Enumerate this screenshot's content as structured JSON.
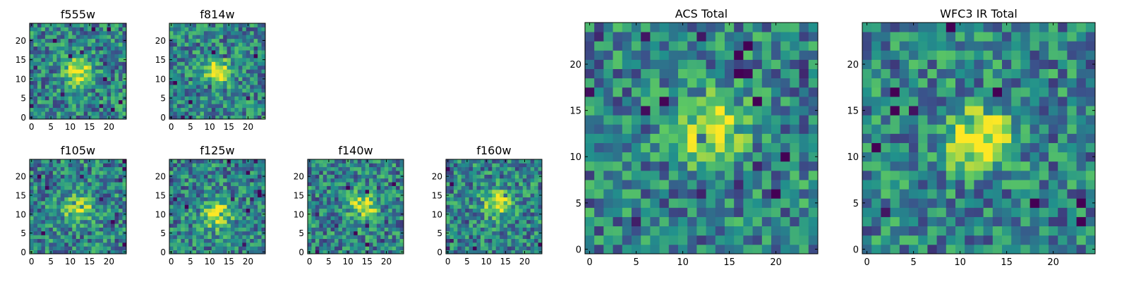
{
  "chart_data": [
    {
      "type": "heatmap",
      "title": "f555w",
      "x_ticks": [
        "0",
        "5",
        "10",
        "15",
        "20"
      ],
      "y_ticks": [
        "0",
        "5",
        "10",
        "15",
        "20"
      ],
      "xlim": [
        0,
        25
      ],
      "ylim": [
        0,
        25
      ],
      "grid_size": [
        25,
        25
      ],
      "colormap": "viridis",
      "peak": {
        "x": 12,
        "y": 12
      }
    },
    {
      "type": "heatmap",
      "title": "f814w",
      "x_ticks": [
        "0",
        "5",
        "10",
        "15",
        "20"
      ],
      "y_ticks": [
        "0",
        "5",
        "10",
        "15",
        "20"
      ],
      "xlim": [
        0,
        25
      ],
      "ylim": [
        0,
        25
      ],
      "grid_size": [
        25,
        25
      ],
      "colormap": "viridis",
      "peak": {
        "x": 12,
        "y": 12
      }
    },
    {
      "type": "heatmap",
      "title": "f105w",
      "x_ticks": [
        "0",
        "5",
        "10",
        "15",
        "20"
      ],
      "y_ticks": [
        "0",
        "5",
        "10",
        "15",
        "20"
      ],
      "xlim": [
        0,
        25
      ],
      "ylim": [
        0,
        25
      ],
      "grid_size": [
        25,
        25
      ],
      "colormap": "viridis",
      "peak": {
        "x": 12,
        "y": 12
      }
    },
    {
      "type": "heatmap",
      "title": "f125w",
      "x_ticks": [
        "0",
        "5",
        "10",
        "15",
        "20"
      ],
      "y_ticks": [
        "0",
        "5",
        "10",
        "15",
        "20"
      ],
      "xlim": [
        0,
        25
      ],
      "ylim": [
        0,
        25
      ],
      "grid_size": [
        25,
        25
      ],
      "colormap": "viridis",
      "peak": {
        "x": 12,
        "y": 10
      }
    },
    {
      "type": "heatmap",
      "title": "f140w",
      "x_ticks": [
        "0",
        "5",
        "10",
        "15",
        "20"
      ],
      "y_ticks": [
        "0",
        "5",
        "10",
        "15",
        "20"
      ],
      "xlim": [
        0,
        25
      ],
      "ylim": [
        0,
        25
      ],
      "grid_size": [
        25,
        25
      ],
      "colormap": "viridis",
      "peak": {
        "x": 14,
        "y": 12
      }
    },
    {
      "type": "heatmap",
      "title": "f160w",
      "x_ticks": [
        "0",
        "5",
        "10",
        "15",
        "20"
      ],
      "y_ticks": [
        "0",
        "5",
        "10",
        "15",
        "20"
      ],
      "xlim": [
        0,
        25
      ],
      "ylim": [
        0,
        25
      ],
      "grid_size": [
        25,
        25
      ],
      "colormap": "viridis",
      "peak": {
        "x": 13,
        "y": 13
      }
    },
    {
      "type": "heatmap",
      "title": "ACS Total",
      "x_ticks": [
        "0",
        "5",
        "10",
        "15",
        "20"
      ],
      "y_ticks": [
        "0",
        "5",
        "10",
        "15",
        "20"
      ],
      "xlim": [
        0,
        25
      ],
      "ylim": [
        0,
        25
      ],
      "grid_size": [
        25,
        25
      ],
      "colormap": "viridis",
      "peak": {
        "x": 13,
        "y": 13
      }
    },
    {
      "type": "heatmap",
      "title": "WFC3 IR Total",
      "x_ticks": [
        "0",
        "5",
        "10",
        "15",
        "20"
      ],
      "y_ticks": [
        "0",
        "5",
        "10",
        "15",
        "20"
      ],
      "xlim": [
        0,
        25
      ],
      "ylim": [
        0,
        25
      ],
      "grid_size": [
        25,
        25
      ],
      "colormap": "viridis",
      "peak": {
        "x": 12,
        "y": 12
      }
    }
  ]
}
